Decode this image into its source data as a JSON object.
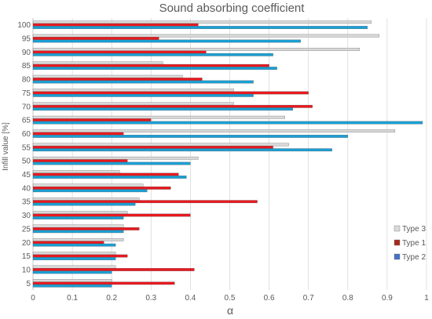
{
  "chart_data": {
    "type": "bar",
    "orientation": "horizontal",
    "title": "Sound absorbing coefficient",
    "xlabel": "α",
    "ylabel": "Infill value [%]",
    "xlim": [
      0,
      1
    ],
    "x_ticks": [
      "0",
      "0.1",
      "0.2",
      "0.3",
      "0.4",
      "0.5",
      "0.6",
      "0.7",
      "0.8",
      "0.9",
      "1"
    ],
    "categories": [
      "100",
      "95",
      "90",
      "85",
      "80",
      "75",
      "70",
      "65",
      "60",
      "55",
      "50",
      "45",
      "40",
      "35",
      "30",
      "25",
      "20",
      "15",
      "10",
      "5"
    ],
    "grid": true,
    "legend_position": "bottom-right",
    "series": [
      {
        "name": "Type 3",
        "color": "#d9d9d9",
        "values": [
          0.86,
          0.88,
          0.83,
          0.33,
          0.38,
          0.51,
          0.51,
          0.64,
          0.92,
          0.65,
          0.42,
          0.22,
          0.28,
          0.27,
          0.24,
          0.23,
          0.23,
          0.21,
          0.21,
          0.2
        ]
      },
      {
        "name": "Type 1",
        "color": "#e8191f",
        "values": [
          0.42,
          0.32,
          0.44,
          0.6,
          0.43,
          0.7,
          0.71,
          0.3,
          0.23,
          0.61,
          0.24,
          0.37,
          0.35,
          0.57,
          0.4,
          0.27,
          0.18,
          0.24,
          0.41,
          0.36
        ]
      },
      {
        "name": "Type 2",
        "color": "#1a9fd4",
        "values": [
          0.85,
          0.68,
          0.61,
          0.62,
          0.56,
          0.56,
          0.66,
          0.99,
          0.8,
          0.76,
          0.4,
          0.39,
          0.29,
          0.26,
          0.23,
          0.23,
          0.21,
          0.21,
          0.2,
          0.2
        ]
      }
    ],
    "legend": [
      {
        "name": "Type 3",
        "color": "#d9d9d9"
      },
      {
        "name": "Type 1",
        "color": "#a52a1a"
      },
      {
        "name": "Type 2",
        "color": "#4472c4"
      }
    ]
  }
}
